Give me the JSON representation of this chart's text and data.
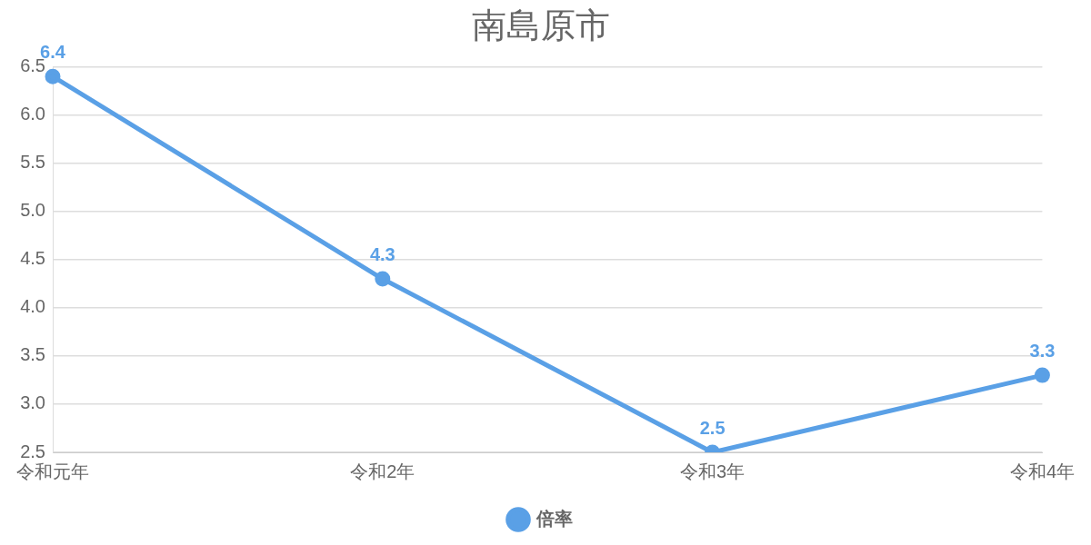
{
  "chart_data": {
    "type": "line",
    "title": "南島原市",
    "categories": [
      "令和元年",
      "令和2年",
      "令和3年",
      "令和4年"
    ],
    "series": [
      {
        "name": "倍率",
        "color": "#5aa0e6",
        "values": [
          6.4,
          4.3,
          2.5,
          3.3
        ]
      }
    ],
    "ylim": [
      2.5,
      6.5
    ],
    "yticks": [
      2.5,
      {
        "value": 3,
        "label": "3.0"
      },
      3.5,
      {
        "value": 4,
        "label": "4.0"
      },
      4.5,
      {
        "value": 5,
        "label": "5.0"
      },
      5.5,
      {
        "value": 6,
        "label": "6.0"
      },
      6.5
    ],
    "grid": "y",
    "legend": "bottom",
    "marker": "circle",
    "line_style": "solid",
    "data_labels": true
  }
}
